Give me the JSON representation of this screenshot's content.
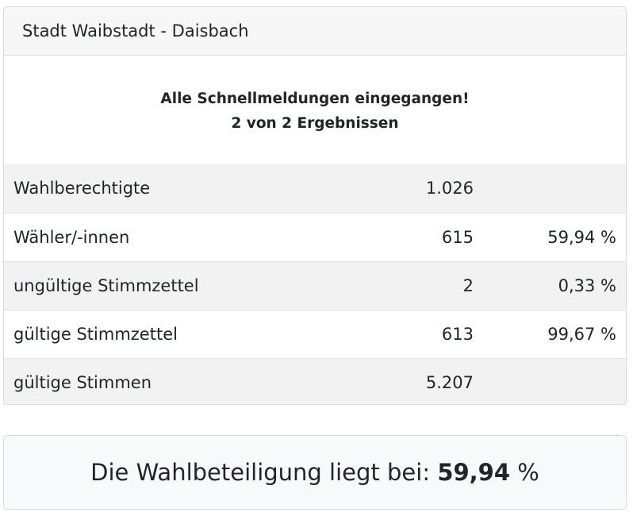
{
  "card": {
    "title": "Stadt Waibstadt - Daisbach",
    "status_line1": "Alle Schnellmeldungen eingegangen!",
    "status_line2": "2 von 2 Ergebnissen"
  },
  "rows": [
    {
      "label": "Wahlberechtigte",
      "count": "1.026",
      "percent": ""
    },
    {
      "label": "Wähler/-innen",
      "count": "615",
      "percent": "59,94 %"
    },
    {
      "label": "ungültige Stimmzettel",
      "count": "2",
      "percent": "0,33 %"
    },
    {
      "label": "gültige Stimmzettel",
      "count": "613",
      "percent": "99,67 %"
    },
    {
      "label": "gültige Stimmen",
      "count": "5.207",
      "percent": ""
    }
  ],
  "summary": {
    "prefix": "Die Wahlbeteiligung liegt bei:",
    "value": "59,94",
    "unit": "%"
  }
}
